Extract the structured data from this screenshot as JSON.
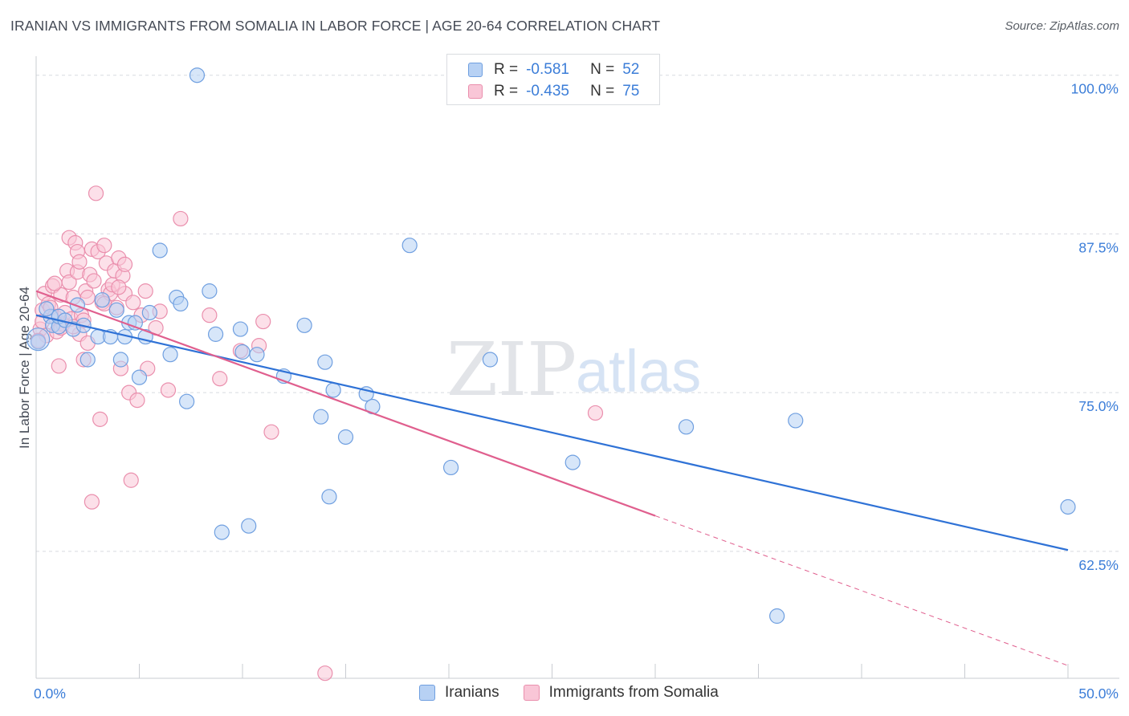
{
  "header": {
    "title": "IRANIAN VS IMMIGRANTS FROM SOMALIA IN LABOR FORCE | AGE 20-64 CORRELATION CHART",
    "source": "Source: ZipAtlas.com"
  },
  "legend_box": {
    "rows": [
      {
        "r_label": "R =",
        "r_value": "-0.581",
        "n_label": "N =",
        "n_value": "52"
      },
      {
        "r_label": "R =",
        "r_value": "-0.435",
        "n_label": "N =",
        "n_value": "75"
      }
    ]
  },
  "watermark": {
    "zip": "ZIP",
    "atlas": "atlas"
  },
  "colors": {
    "blue_fill": "#b7d1f4",
    "blue_stroke": "#6f9fe0",
    "blue_line": "#2f72d6",
    "pink_fill": "#f9c6d7",
    "pink_stroke": "#ea8fad",
    "pink_line": "#e05f8e",
    "grid": "#d7dae0",
    "axis_text": "#3b7dd8"
  },
  "chart_data": {
    "type": "scatter",
    "title": "IRANIAN VS IMMIGRANTS FROM SOMALIA IN LABOR FORCE | AGE 20-64 CORRELATION CHART",
    "xlabel": "",
    "ylabel": "In Labor Force | Age 20-64",
    "xlim": [
      0,
      50
    ],
    "ylim": [
      52.5,
      101.5
    ],
    "x_tick_labels": [
      "0.0%",
      "50.0%"
    ],
    "y_ticks": [
      62.5,
      75.0,
      87.5,
      100.0
    ],
    "y_tick_labels": [
      "62.5%",
      "75.0%",
      "87.5%",
      "100.0%"
    ],
    "legend_position": "bottom-center",
    "series": [
      {
        "name": "Iranians",
        "color": "#6f9fe0",
        "r": -0.581,
        "n": 52,
        "trend": {
          "x0": 0,
          "y0": 81.1,
          "x1": 50,
          "y1": 62.6
        },
        "points": [
          [
            0.1,
            79.0
          ],
          [
            0.7,
            81.0
          ],
          [
            0.8,
            80.3
          ],
          [
            1.1,
            80.2
          ],
          [
            1.1,
            81.0
          ],
          [
            1.4,
            80.7
          ],
          [
            1.8,
            80.0
          ],
          [
            2.0,
            81.9
          ],
          [
            2.3,
            80.3
          ],
          [
            2.5,
            77.6
          ],
          [
            3.0,
            79.4
          ],
          [
            3.2,
            82.3
          ],
          [
            3.6,
            79.4
          ],
          [
            3.9,
            81.5
          ],
          [
            4.1,
            77.6
          ],
          [
            4.3,
            79.4
          ],
          [
            4.5,
            80.5
          ],
          [
            4.8,
            80.5
          ],
          [
            5.0,
            76.2
          ],
          [
            5.3,
            79.4
          ],
          [
            5.5,
            81.3
          ],
          [
            6.0,
            86.2
          ],
          [
            6.5,
            78.0
          ],
          [
            6.8,
            82.5
          ],
          [
            7.0,
            82.0
          ],
          [
            7.3,
            74.3
          ],
          [
            7.8,
            100.0
          ],
          [
            8.4,
            83.0
          ],
          [
            8.7,
            79.6
          ],
          [
            9.0,
            64.0
          ],
          [
            9.9,
            80.0
          ],
          [
            10.0,
            78.2
          ],
          [
            10.3,
            64.5
          ],
          [
            10.7,
            78.0
          ],
          [
            12.0,
            76.3
          ],
          [
            13.0,
            80.3
          ],
          [
            13.8,
            73.1
          ],
          [
            14.0,
            77.4
          ],
          [
            14.2,
            66.8
          ],
          [
            14.4,
            75.2
          ],
          [
            15.0,
            71.5
          ],
          [
            16.0,
            74.9
          ],
          [
            16.3,
            73.9
          ],
          [
            18.1,
            86.6
          ],
          [
            20.1,
            69.1
          ],
          [
            22.0,
            77.6
          ],
          [
            26.0,
            69.5
          ],
          [
            31.5,
            72.3
          ],
          [
            35.9,
            57.4
          ],
          [
            36.8,
            72.8
          ],
          [
            50.0,
            66.0
          ],
          [
            0.5,
            81.6
          ]
        ]
      },
      {
        "name": "Immigrants from Somalia",
        "color": "#ea8fad",
        "r": -0.435,
        "n": 75,
        "trend": {
          "x0": 0,
          "y0": 83.0,
          "x1": 30,
          "y1": 65.3
        },
        "trend_dashed_to": {
          "x": 50,
          "y": 53.5
        },
        "points": [
          [
            0.2,
            80.0
          ],
          [
            0.3,
            81.5
          ],
          [
            0.4,
            82.8
          ],
          [
            0.5,
            79.5
          ],
          [
            0.6,
            82.0
          ],
          [
            0.7,
            81.7
          ],
          [
            0.8,
            83.4
          ],
          [
            0.9,
            81.0
          ],
          [
            1.0,
            79.8
          ],
          [
            1.1,
            77.1
          ],
          [
            1.2,
            82.7
          ],
          [
            1.3,
            80.4
          ],
          [
            1.4,
            81.3
          ],
          [
            1.5,
            84.6
          ],
          [
            1.6,
            83.7
          ],
          [
            1.6,
            87.2
          ],
          [
            1.7,
            80.8
          ],
          [
            1.8,
            82.5
          ],
          [
            1.9,
            86.8
          ],
          [
            2.0,
            84.5
          ],
          [
            2.0,
            86.1
          ],
          [
            2.1,
            79.6
          ],
          [
            2.1,
            85.3
          ],
          [
            2.2,
            81.1
          ],
          [
            2.3,
            80.7
          ],
          [
            2.3,
            77.6
          ],
          [
            2.4,
            83.0
          ],
          [
            2.5,
            82.5
          ],
          [
            2.6,
            84.3
          ],
          [
            2.7,
            86.3
          ],
          [
            2.7,
            66.4
          ],
          [
            2.8,
            83.8
          ],
          [
            2.9,
            90.7
          ],
          [
            3.0,
            86.1
          ],
          [
            3.1,
            72.9
          ],
          [
            3.2,
            82.1
          ],
          [
            3.3,
            86.6
          ],
          [
            3.4,
            85.2
          ],
          [
            3.5,
            83.1
          ],
          [
            3.6,
            82.8
          ],
          [
            3.7,
            83.5
          ],
          [
            3.8,
            84.6
          ],
          [
            3.9,
            81.7
          ],
          [
            4.0,
            85.6
          ],
          [
            4.1,
            76.9
          ],
          [
            4.2,
            84.2
          ],
          [
            4.3,
            85.1
          ],
          [
            4.3,
            82.8
          ],
          [
            4.5,
            75.0
          ],
          [
            4.6,
            68.1
          ],
          [
            4.7,
            82.1
          ],
          [
            4.9,
            74.4
          ],
          [
            5.1,
            81.1
          ],
          [
            5.3,
            83.0
          ],
          [
            5.4,
            76.9
          ],
          [
            6.0,
            81.4
          ],
          [
            6.4,
            75.2
          ],
          [
            7.0,
            88.7
          ],
          [
            8.4,
            81.1
          ],
          [
            8.9,
            76.1
          ],
          [
            9.9,
            78.3
          ],
          [
            10.8,
            78.7
          ],
          [
            11.0,
            80.6
          ],
          [
            11.4,
            71.9
          ],
          [
            14.0,
            52.9
          ],
          [
            27.1,
            73.4
          ],
          [
            0.1,
            79.1
          ],
          [
            0.3,
            80.6
          ],
          [
            1.2,
            80.1
          ],
          [
            2.5,
            78.9
          ],
          [
            3.3,
            82.0
          ],
          [
            0.9,
            83.6
          ],
          [
            1.8,
            80.2
          ],
          [
            4.0,
            83.3
          ],
          [
            5.8,
            80.1
          ]
        ]
      }
    ]
  },
  "bottom_legend": {
    "items": [
      {
        "label": "Iranians"
      },
      {
        "label": "Immigrants from Somalia"
      }
    ]
  }
}
